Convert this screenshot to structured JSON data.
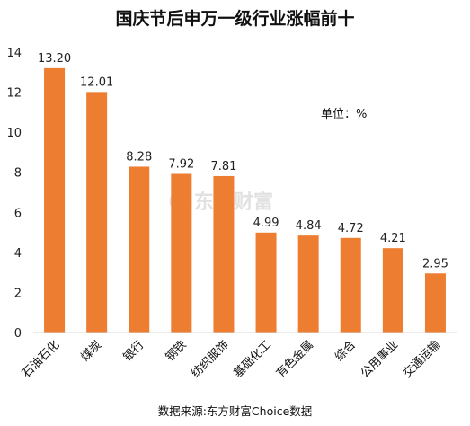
{
  "chart_data": {
    "type": "bar",
    "title": "国庆节后申万一级行业涨幅前十",
    "unit_label": "单位：%",
    "source": "数据来源:东方财富Choice数据",
    "watermark": "东方财富",
    "categories": [
      "石油石化",
      "煤炭",
      "银行",
      "钢铁",
      "纺织服饰",
      "基础化工",
      "有色金属",
      "综合",
      "公用事业",
      "交通运输"
    ],
    "values": [
      13.2,
      12.01,
      8.28,
      7.92,
      7.81,
      4.99,
      4.84,
      4.72,
      4.21,
      2.95
    ],
    "value_labels": [
      "13.20",
      "12.01",
      "8.28",
      "7.92",
      "7.81",
      "4.99",
      "4.84",
      "4.72",
      "4.21",
      "2.95"
    ],
    "ylim": [
      0,
      14
    ],
    "yticks": [
      "0",
      "2",
      "4",
      "6",
      "8",
      "10",
      "12",
      "14"
    ],
    "bar_color": "#ED7D31",
    "grid": false,
    "legend": "none"
  }
}
